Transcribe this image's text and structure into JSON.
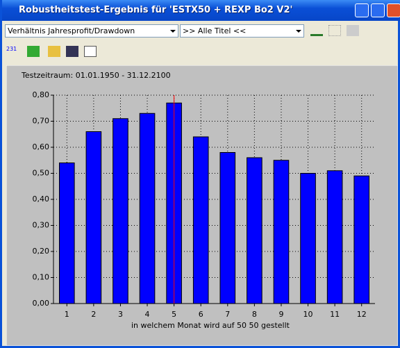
{
  "window": {
    "title": "Robustheitstest-Ergebnis für 'ESTX50 + REXP Bo2 V2'"
  },
  "toolbar": {
    "measure_select": "Verhältnis Jahresprofit/Drawdown",
    "title_select": ">> Alle Titel <<",
    "counter_icon": "231"
  },
  "chart_data": {
    "type": "bar",
    "subtitle": "Testzeitraum: 01.01.1950 - 31.12.2100",
    "x_label": "in welchem Monat wird auf 50 50 gestellt",
    "categories": [
      "1",
      "2",
      "3",
      "4",
      "5",
      "6",
      "7",
      "8",
      "9",
      "10",
      "11",
      "12"
    ],
    "values": [
      0.54,
      0.66,
      0.71,
      0.73,
      0.77,
      0.64,
      0.58,
      0.56,
      0.55,
      0.5,
      0.51,
      0.49
    ],
    "color": "#0000ff",
    "highlight": "5",
    "highlight_color": "#ff0000",
    "ylim": [
      0,
      0.8
    ],
    "yticks": [
      {
        "value": 0,
        "label": "0,00"
      },
      {
        "value": 0.1,
        "label": "0,10"
      },
      {
        "value": 0.2,
        "label": "0,20"
      },
      {
        "value": 0.3,
        "label": "0,30"
      },
      {
        "value": 0.4,
        "label": "0,40"
      },
      {
        "value": 0.5,
        "label": "0,50"
      },
      {
        "value": 0.6,
        "label": "0,60"
      },
      {
        "value": 0.7,
        "label": "0,70"
      },
      {
        "value": 0.8,
        "label": "0,80"
      }
    ],
    "grid": true
  }
}
